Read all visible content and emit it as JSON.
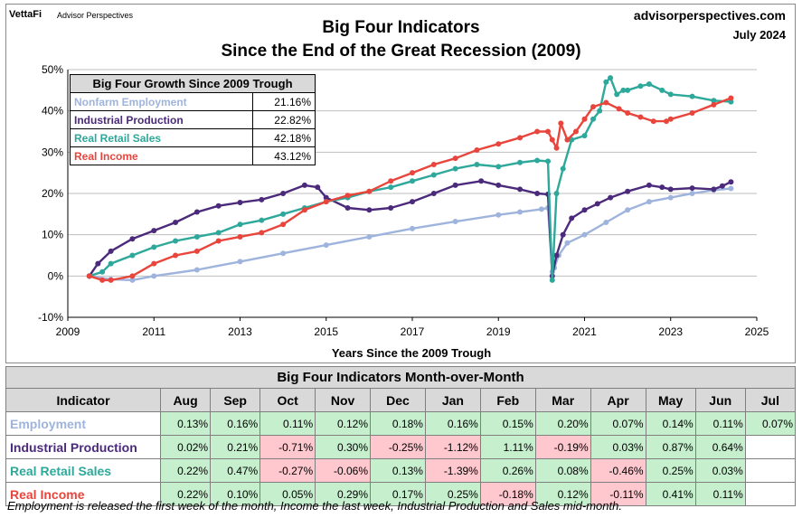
{
  "header": {
    "logo": "VettaFi",
    "logo_sub": "Advisor Perspectives",
    "title_line1": "Big Four Indicators",
    "title_line2": "Since the End of the Great Recession (2009)",
    "site": "advisorperspectives.com",
    "date": "July 2024"
  },
  "growth_table": {
    "title": "Big Four Growth Since 2009 Trough",
    "rows": [
      {
        "label": "Nonfarm Employment",
        "value": "21.16%"
      },
      {
        "label": "Industrial Production",
        "value": "22.82%"
      },
      {
        "label": "Real Retail Sales",
        "value": "42.18%"
      },
      {
        "label": "Real Income",
        "value": "43.12%"
      }
    ]
  },
  "colors": {
    "employment": "#9fb4dd",
    "industrial": "#4b2a7b",
    "retail": "#2ea89a",
    "income": "#e8453c"
  },
  "chart_data": {
    "type": "line",
    "title": "Big Four Indicators Since the End of the Great Recession (2009)",
    "xlabel": "Years Since the 2009 Trough",
    "ylabel": "",
    "xlim": [
      2009,
      2025
    ],
    "ylim": [
      -10,
      50
    ],
    "x_ticks": [
      "2009",
      "2011",
      "2013",
      "2015",
      "2017",
      "2019",
      "2021",
      "2023",
      "2025"
    ],
    "y_ticks": [
      "-10%",
      "0%",
      "10%",
      "20%",
      "30%",
      "40%",
      "50%"
    ],
    "series": [
      {
        "name": "Nonfarm Employment",
        "x": [
          2009.5,
          2010,
          2010.5,
          2011,
          2012,
          2013,
          2014,
          2015,
          2016,
          2017,
          2018,
          2019,
          2019.5,
          2020.0,
          2020.15,
          2020.25,
          2020.3,
          2020.4,
          2020.6,
          2021,
          2021.5,
          2022,
          2022.5,
          2023,
          2023.5,
          2024,
          2024.4
        ],
        "y": [
          0,
          -0.8,
          -1,
          0,
          1.5,
          3.5,
          5.5,
          7.5,
          9.5,
          11.5,
          13.2,
          14.8,
          15.5,
          16.2,
          16.5,
          1,
          2,
          5,
          8,
          10,
          13,
          16,
          18,
          19,
          20,
          20.8,
          21.2
        ]
      },
      {
        "name": "Industrial Production",
        "x": [
          2009.5,
          2009.7,
          2010,
          2010.5,
          2011,
          2011.5,
          2012,
          2012.5,
          2013,
          2013.5,
          2014,
          2014.5,
          2014.8,
          2015,
          2015.5,
          2016,
          2016.5,
          2017,
          2017.5,
          2018,
          2018.6,
          2019,
          2019.5,
          2019.9,
          2020.15,
          2020.25,
          2020.35,
          2020.5,
          2020.7,
          2021,
          2021.3,
          2021.6,
          2022,
          2022.5,
          2022.8,
          2023,
          2023.5,
          2024,
          2024.2,
          2024.4
        ],
        "y": [
          0,
          3,
          6,
          9,
          11,
          13,
          15.5,
          17,
          17.8,
          18.5,
          20,
          22,
          21.5,
          19,
          16.5,
          16,
          16.5,
          18,
          20,
          22,
          23,
          22,
          21,
          20,
          19.8,
          0,
          5,
          10,
          14,
          16,
          17.5,
          19,
          20.5,
          22,
          21.5,
          21,
          21.3,
          21,
          21.8,
          22.8
        ]
      },
      {
        "name": "Real Retail Sales",
        "x": [
          2009.5,
          2009.8,
          2010,
          2010.5,
          2011,
          2011.5,
          2012,
          2012.5,
          2013,
          2013.5,
          2014,
          2014.5,
          2015,
          2015.5,
          2016,
          2016.5,
          2017,
          2017.5,
          2018,
          2018.5,
          2019,
          2019.5,
          2019.9,
          2020.15,
          2020.25,
          2020.35,
          2020.5,
          2020.7,
          2021,
          2021.2,
          2021.35,
          2021.5,
          2021.6,
          2021.75,
          2021.9,
          2022,
          2022.3,
          2022.5,
          2022.8,
          2023,
          2023.5,
          2024,
          2024.4
        ],
        "y": [
          0,
          1,
          3,
          5,
          7,
          8.5,
          9.5,
          10.5,
          12.5,
          13.5,
          15,
          16.5,
          18,
          19,
          20.5,
          21.5,
          23,
          24.5,
          26,
          27,
          26.5,
          27.5,
          28,
          27.8,
          -1,
          20,
          26,
          33,
          34,
          38,
          40,
          47,
          48,
          44,
          45,
          45,
          46,
          46.5,
          45,
          44,
          43.5,
          42.5,
          42.2
        ]
      },
      {
        "name": "Real Income",
        "x": [
          2009.5,
          2009.8,
          2010,
          2010.5,
          2011,
          2011.5,
          2012,
          2012.5,
          2013,
          2013.5,
          2014,
          2014.5,
          2015,
          2015.5,
          2016,
          2016.5,
          2017,
          2017.5,
          2018,
          2018.5,
          2019,
          2019.5,
          2019.9,
          2020.15,
          2020.25,
          2020.35,
          2020.45,
          2020.6,
          2020.8,
          2021,
          2021.2,
          2021.5,
          2021.8,
          2022,
          2022.3,
          2022.6,
          2022.9,
          2023,
          2023.5,
          2024,
          2024.4
        ],
        "y": [
          0,
          -1,
          -1,
          0,
          3,
          5,
          6,
          8.5,
          9.5,
          10.5,
          12.5,
          16,
          18,
          19.5,
          20.5,
          23,
          25,
          27,
          28.5,
          30.5,
          32,
          33.5,
          35,
          35,
          33,
          31,
          37,
          33,
          35,
          38,
          41,
          42,
          40.5,
          39.5,
          38.5,
          37.5,
          37.5,
          38,
          39.5,
          41.5,
          43.1
        ]
      }
    ]
  },
  "mom_table": {
    "caption": "Big Four Indicators Month-over-Month",
    "header_label": "Indicator",
    "months": [
      "Aug",
      "Sep",
      "Oct",
      "Nov",
      "Dec",
      "Jan",
      "Feb",
      "Mar",
      "Apr",
      "May",
      "Jun",
      "Jul"
    ],
    "rows": [
      {
        "label": "Employment",
        "color": "#9fb4dd",
        "values": [
          "0.13%",
          "0.16%",
          "0.11%",
          "0.12%",
          "0.18%",
          "0.16%",
          "0.15%",
          "0.20%",
          "0.07%",
          "0.14%",
          "0.11%",
          "0.07%"
        ],
        "signs": [
          "pos",
          "pos",
          "pos",
          "pos",
          "pos",
          "pos",
          "pos",
          "pos",
          "pos",
          "pos",
          "pos",
          "pos"
        ]
      },
      {
        "label": "Industrial Production",
        "color": "#4b2a7b",
        "values": [
          "0.02%",
          "0.21%",
          "-0.71%",
          "0.30%",
          "-0.25%",
          "-1.12%",
          "1.11%",
          "-0.19%",
          "0.03%",
          "0.87%",
          "0.64%",
          ""
        ],
        "signs": [
          "pos",
          "pos",
          "neg",
          "pos",
          "neg",
          "neg",
          "pos",
          "neg",
          "pos",
          "pos",
          "pos",
          ""
        ]
      },
      {
        "label": "Real Retail Sales",
        "color": "#2ea89a",
        "values": [
          "0.22%",
          "0.47%",
          "-0.27%",
          "-0.06%",
          "0.13%",
          "-1.39%",
          "0.26%",
          "0.08%",
          "-0.46%",
          "0.25%",
          "0.03%",
          ""
        ],
        "signs": [
          "pos",
          "pos",
          "neg",
          "neg",
          "pos",
          "neg",
          "pos",
          "pos",
          "neg",
          "pos",
          "pos",
          ""
        ]
      },
      {
        "label": "Real Income",
        "color": "#e8453c",
        "values": [
          "0.22%",
          "0.10%",
          "0.05%",
          "0.29%",
          "0.17%",
          "0.25%",
          "-0.18%",
          "0.12%",
          "-0.11%",
          "0.41%",
          "0.11%",
          ""
        ],
        "signs": [
          "pos",
          "pos",
          "pos",
          "pos",
          "pos",
          "pos",
          "neg",
          "pos",
          "neg",
          "pos",
          "pos",
          ""
        ]
      }
    ]
  },
  "footnote": "Employment is released the first week of the month, Income the last week, Industrial Production and Sales mid-month."
}
